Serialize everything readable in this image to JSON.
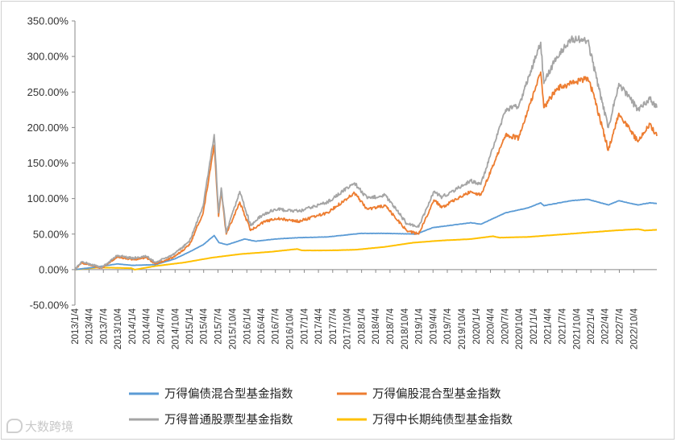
{
  "chart_data": {
    "type": "line",
    "title": "",
    "xlabel": "",
    "ylabel": "",
    "ylim": [
      -50,
      350
    ],
    "yticks": [
      "-50.00%",
      "0.00%",
      "50.00%",
      "100.00%",
      "150.00%",
      "200.00%",
      "250.00%",
      "300.00%",
      "350.00%"
    ],
    "ytick_values": [
      -50,
      0,
      50,
      100,
      150,
      200,
      250,
      300,
      350
    ],
    "xlim": [
      "2013-01-04",
      "2023-02-28"
    ],
    "xticks": [
      "2013/1/4",
      "2013/4/4",
      "2013/7/4",
      "2013/10/4",
      "2014/1/4",
      "2014/4/4",
      "2014/7/4",
      "2014/10/4",
      "2015/1/4",
      "2015/4/4",
      "2015/7/4",
      "2015/10/4",
      "2016/1/4",
      "2016/4/4",
      "2016/7/4",
      "2016/10/4",
      "2017/1/4",
      "2017/4/4",
      "2017/7/4",
      "2017/10/4",
      "2018/1/4",
      "2018/4/4",
      "2018/7/4",
      "2018/10/4",
      "2019/1/4",
      "2019/4/4",
      "2019/7/4",
      "2019/10/4",
      "2020/1/4",
      "2020/4/4",
      "2020/7/4",
      "2020/10/4",
      "2021/1/4",
      "2021/4/4",
      "2021/7/4",
      "2021/10/4",
      "2022/1/4",
      "2022/4/4",
      "2022/7/4",
      "2022/10/4"
    ],
    "grid": false,
    "legend_position": "bottom",
    "series": [
      {
        "name": "万得偏债混合型基金指数",
        "color": "#5b9bd5",
        "points": [
          [
            "2013-01-04",
            0
          ],
          [
            "2013-06-01",
            4
          ],
          [
            "2013-10-01",
            8
          ],
          [
            "2014-01-04",
            6
          ],
          [
            "2014-06-01",
            7
          ],
          [
            "2014-10-01",
            15
          ],
          [
            "2015-01-04",
            25
          ],
          [
            "2015-04-01",
            35
          ],
          [
            "2015-06-10",
            48
          ],
          [
            "2015-07-10",
            38
          ],
          [
            "2015-09-01",
            35
          ],
          [
            "2015-12-20",
            43
          ],
          [
            "2016-03-01",
            40
          ],
          [
            "2016-07-01",
            43
          ],
          [
            "2016-12-01",
            45
          ],
          [
            "2017-06-01",
            46
          ],
          [
            "2018-01-01",
            51
          ],
          [
            "2018-06-01",
            51
          ],
          [
            "2018-12-20",
            50
          ],
          [
            "2019-04-01",
            59
          ],
          [
            "2019-12-01",
            66
          ],
          [
            "2020-02-03",
            64
          ],
          [
            "2020-07-10",
            80
          ],
          [
            "2020-12-01",
            87
          ],
          [
            "2021-02-18",
            94
          ],
          [
            "2021-03-10",
            90
          ],
          [
            "2021-09-01",
            97
          ],
          [
            "2021-12-15",
            99
          ],
          [
            "2022-04-25",
            91
          ],
          [
            "2022-07-01",
            97
          ],
          [
            "2022-10-31",
            91
          ],
          [
            "2023-01-15",
            94
          ],
          [
            "2023-02-28",
            93
          ]
        ]
      },
      {
        "name": "万得偏股混合型基金指数",
        "color": "#ed7d31",
        "points": [
          [
            "2013-01-04",
            0
          ],
          [
            "2013-02-15",
            10
          ],
          [
            "2013-06-25",
            2
          ],
          [
            "2013-10-01",
            18
          ],
          [
            "2014-01-04",
            14
          ],
          [
            "2014-04-01",
            17
          ],
          [
            "2014-06-01",
            8
          ],
          [
            "2014-10-01",
            18
          ],
          [
            "2015-01-04",
            35
          ],
          [
            "2015-04-01",
            80
          ],
          [
            "2015-06-10",
            175
          ],
          [
            "2015-07-08",
            75
          ],
          [
            "2015-07-25",
            110
          ],
          [
            "2015-08-26",
            50
          ],
          [
            "2015-11-20",
            95
          ],
          [
            "2016-01-28",
            55
          ],
          [
            "2016-04-01",
            65
          ],
          [
            "2016-07-01",
            72
          ],
          [
            "2016-12-01",
            68
          ],
          [
            "2017-06-01",
            80
          ],
          [
            "2017-11-20",
            108
          ],
          [
            "2018-02-09",
            85
          ],
          [
            "2018-06-01",
            90
          ],
          [
            "2018-10-19",
            55
          ],
          [
            "2019-01-03",
            50
          ],
          [
            "2019-04-10",
            98
          ],
          [
            "2019-06-01",
            88
          ],
          [
            "2019-12-01",
            110
          ],
          [
            "2020-02-03",
            105
          ],
          [
            "2020-07-10",
            190
          ],
          [
            "2020-10-01",
            185
          ],
          [
            "2021-02-18",
            278
          ],
          [
            "2021-03-10",
            228
          ],
          [
            "2021-06-01",
            255
          ],
          [
            "2021-09-01",
            262
          ],
          [
            "2021-12-15",
            270
          ],
          [
            "2022-01-15",
            250
          ],
          [
            "2022-04-25",
            168
          ],
          [
            "2022-07-01",
            220
          ],
          [
            "2022-10-31",
            180
          ],
          [
            "2023-01-15",
            205
          ],
          [
            "2023-02-28",
            188
          ]
        ]
      },
      {
        "name": "万得普通股票型基金指数",
        "color": "#a5a5a5",
        "points": [
          [
            "2013-01-04",
            0
          ],
          [
            "2013-02-15",
            11
          ],
          [
            "2013-06-25",
            3
          ],
          [
            "2013-10-01",
            20
          ],
          [
            "2014-01-04",
            16
          ],
          [
            "2014-04-01",
            19
          ],
          [
            "2014-06-01",
            10
          ],
          [
            "2014-10-01",
            22
          ],
          [
            "2015-01-04",
            40
          ],
          [
            "2015-04-01",
            90
          ],
          [
            "2015-06-10",
            190
          ],
          [
            "2015-07-08",
            80
          ],
          [
            "2015-07-25",
            115
          ],
          [
            "2015-08-26",
            52
          ],
          [
            "2015-11-20",
            110
          ],
          [
            "2016-01-28",
            62
          ],
          [
            "2016-04-01",
            75
          ],
          [
            "2016-07-01",
            85
          ],
          [
            "2016-12-01",
            82
          ],
          [
            "2017-06-01",
            95
          ],
          [
            "2017-11-20",
            122
          ],
          [
            "2018-02-09",
            100
          ],
          [
            "2018-06-01",
            105
          ],
          [
            "2018-10-19",
            65
          ],
          [
            "2019-01-03",
            60
          ],
          [
            "2019-04-10",
            110
          ],
          [
            "2019-06-01",
            102
          ],
          [
            "2019-12-01",
            125
          ],
          [
            "2020-02-03",
            120
          ],
          [
            "2020-07-10",
            225
          ],
          [
            "2020-10-01",
            230
          ],
          [
            "2021-02-18",
            320
          ],
          [
            "2021-03-10",
            262
          ],
          [
            "2021-06-01",
            300
          ],
          [
            "2021-09-01",
            325
          ],
          [
            "2021-12-15",
            322
          ],
          [
            "2022-01-15",
            292
          ],
          [
            "2022-04-25",
            200
          ],
          [
            "2022-07-01",
            262
          ],
          [
            "2022-10-31",
            225
          ],
          [
            "2023-01-15",
            240
          ],
          [
            "2023-02-28",
            228
          ]
        ]
      },
      {
        "name": "万得中长期纯债型基金指数",
        "color": "#ffc000",
        "points": [
          [
            "2013-01-04",
            0
          ],
          [
            "2013-06-01",
            3
          ],
          [
            "2013-12-30",
            2
          ],
          [
            "2014-01-20",
            0
          ],
          [
            "2014-06-01",
            5
          ],
          [
            "2014-12-01",
            10
          ],
          [
            "2015-06-01",
            17
          ],
          [
            "2015-12-01",
            22
          ],
          [
            "2016-06-01",
            25
          ],
          [
            "2016-11-20",
            29
          ],
          [
            "2016-12-20",
            27
          ],
          [
            "2017-06-01",
            27
          ],
          [
            "2017-12-01",
            28
          ],
          [
            "2018-06-01",
            32
          ],
          [
            "2018-12-01",
            38
          ],
          [
            "2019-06-01",
            41
          ],
          [
            "2019-12-01",
            43
          ],
          [
            "2020-04-20",
            47
          ],
          [
            "2020-06-01",
            45
          ],
          [
            "2020-12-01",
            46
          ],
          [
            "2021-06-01",
            49
          ],
          [
            "2021-12-01",
            52
          ],
          [
            "2022-06-01",
            55
          ],
          [
            "2022-11-01",
            57
          ],
          [
            "2022-12-15",
            55
          ],
          [
            "2023-02-28",
            56
          ]
        ]
      }
    ]
  },
  "watermark": {
    "text": "大数跨境"
  }
}
